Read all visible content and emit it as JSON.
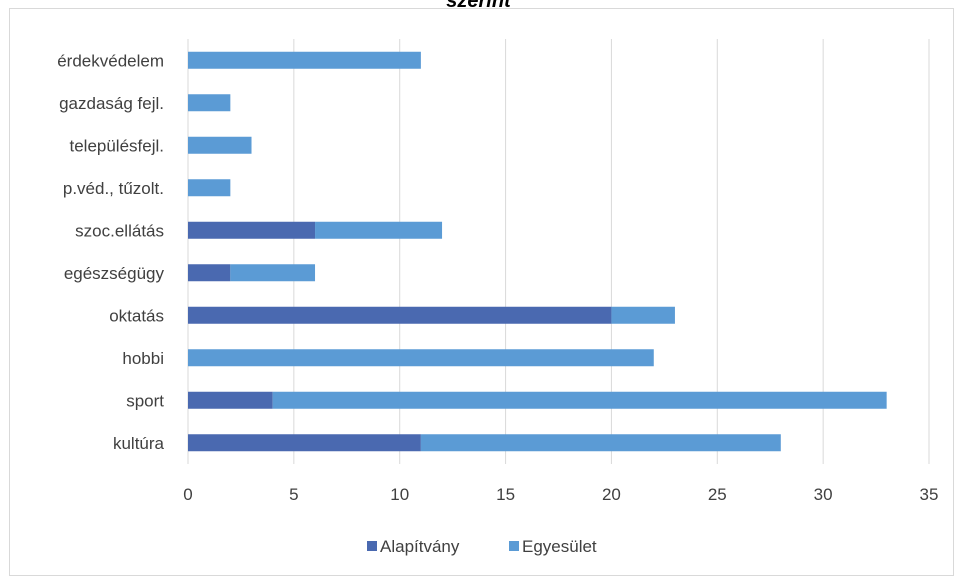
{
  "chart_data": {
    "type": "bar",
    "orientation": "horizontal",
    "stacked": true,
    "title": "szerint",
    "categories": [
      "kultúra",
      "sport",
      "hobbi",
      "oktatás",
      "egészségügy",
      "szoc.ellátás",
      "p.véd., tűzolt.",
      "településfejl.",
      "gazdaság fejl.",
      "érdekvédelem"
    ],
    "series": [
      {
        "name": "Alapítvány",
        "color": "#4a69b0",
        "values": [
          11,
          4,
          0,
          20,
          2,
          6,
          0,
          0,
          0,
          0
        ]
      },
      {
        "name": "Egyesület",
        "color": "#5b9bd5",
        "values": [
          17,
          29,
          22,
          3,
          4,
          6,
          2,
          3,
          2,
          11
        ]
      }
    ],
    "xlim": [
      0,
      35
    ],
    "xticks": [
      "0",
      "5",
      "10",
      "15",
      "20",
      "25",
      "30",
      "35"
    ],
    "grid": true,
    "legend_position": "bottom"
  }
}
